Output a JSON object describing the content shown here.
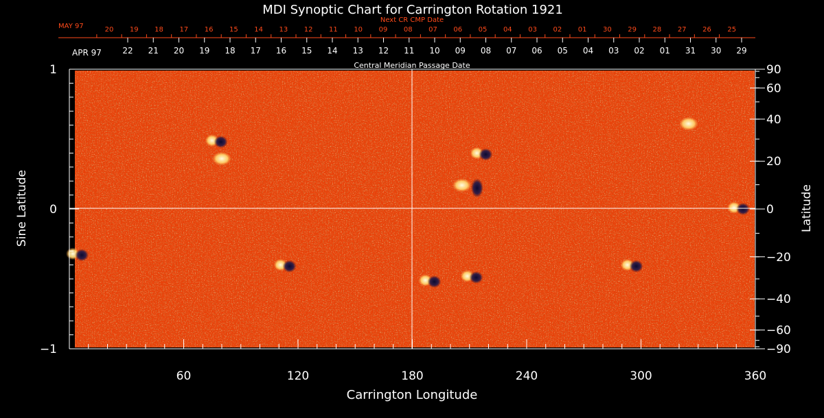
{
  "chart_data": {
    "type": "heatmap",
    "title": "MDI Synoptic Chart for Carrington Rotation 1921",
    "xlabel": "Carrington Longitude",
    "ylabel_left": "Sine Latitude",
    "ylabel_right": "Latitude",
    "xlim": [
      0,
      360
    ],
    "ylim_sine": [
      -1,
      1
    ],
    "x_ticks": [
      60,
      120,
      180,
      240,
      300,
      360
    ],
    "y_ticks_left": [
      {
        "value": 1,
        "label": "1"
      },
      {
        "value": 0,
        "label": "0"
      },
      {
        "value": -1,
        "label": "−1"
      }
    ],
    "y_ticks_right": [
      {
        "deg": 90,
        "label": "90"
      },
      {
        "deg": 60,
        "label": "60"
      },
      {
        "deg": 40,
        "label": "40"
      },
      {
        "deg": 20,
        "label": "20"
      },
      {
        "deg": 0,
        "label": "0"
      },
      {
        "deg": -20,
        "label": "−20"
      },
      {
        "deg": -40,
        "label": "−40"
      },
      {
        "deg": -60,
        "label": "−60"
      },
      {
        "deg": -90,
        "label": "−90"
      }
    ],
    "top_axis_1": {
      "title": "Next CR CMP Date",
      "month_label": "MAY 97",
      "dates": [
        "20",
        "19",
        "18",
        "17",
        "16",
        "15",
        "14",
        "13",
        "12",
        "11",
        "10",
        "09",
        "08",
        "07",
        "06",
        "05",
        "04",
        "03",
        "02",
        "01",
        "30",
        "29",
        "28",
        "27",
        "26",
        "25"
      ]
    },
    "top_axis_2": {
      "title": "Central Meridian Passage Date",
      "month_label": "APR 97",
      "dates": [
        "22",
        "21",
        "20",
        "19",
        "18",
        "17",
        "16",
        "15",
        "14",
        "13",
        "12",
        "11",
        "10",
        "09",
        "08",
        "07",
        "06",
        "05",
        "04",
        "03",
        "02",
        "01",
        "31",
        "30",
        "29"
      ]
    },
    "gridlines": {
      "longitude": 180,
      "sine_latitude": 0
    },
    "colors": {
      "background": "#e8420a",
      "positive": "#fff2a0",
      "negative": "#14143c",
      "annotation": "#ff4a1a",
      "axis": "#ffffff"
    },
    "active_regions": [
      {
        "lon": 77,
        "sinlat": 0.49,
        "polarity": "mixed"
      },
      {
        "lon": 80,
        "sinlat": 0.36,
        "polarity": "positive"
      },
      {
        "lon": 4,
        "sinlat": -0.32,
        "polarity": "mixed"
      },
      {
        "lon": 113,
        "sinlat": -0.4,
        "polarity": "mixed"
      },
      {
        "lon": 189,
        "sinlat": -0.51,
        "polarity": "mixed"
      },
      {
        "lon": 211,
        "sinlat": -0.48,
        "polarity": "mixed"
      },
      {
        "lon": 216,
        "sinlat": 0.4,
        "polarity": "mixed"
      },
      {
        "lon": 214,
        "sinlat": 0.15,
        "polarity": "negative"
      },
      {
        "lon": 206,
        "sinlat": 0.17,
        "polarity": "positive"
      },
      {
        "lon": 295,
        "sinlat": -0.4,
        "polarity": "mixed"
      },
      {
        "lon": 325,
        "sinlat": 0.61,
        "polarity": "positive"
      },
      {
        "lon": 351,
        "sinlat": 0.01,
        "polarity": "mixed"
      }
    ]
  }
}
